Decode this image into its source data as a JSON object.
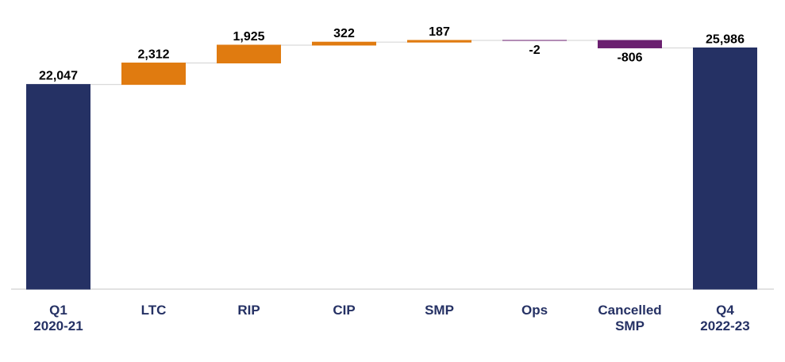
{
  "chart_data": {
    "type": "waterfall",
    "categories": [
      [
        "Q1",
        "2020-21"
      ],
      [
        "LTC"
      ],
      [
        "RIP"
      ],
      [
        "CIP"
      ],
      [
        "SMP"
      ],
      [
        "Ops"
      ],
      [
        "Cancelled",
        "SMP"
      ],
      [
        "Q4",
        "2022-23"
      ]
    ],
    "values": [
      22047,
      2312,
      1925,
      322,
      187,
      -2,
      -806,
      25986
    ],
    "value_labels": [
      "22,047",
      "2,312",
      "1,925",
      "322",
      "187",
      "-2",
      "-806",
      "25,986"
    ],
    "totals": [
      true,
      false,
      false,
      false,
      false,
      false,
      false,
      true
    ],
    "colors": {
      "total": "#253164",
      "increase": "#e07b10",
      "decrease": "#6b2070"
    }
  }
}
